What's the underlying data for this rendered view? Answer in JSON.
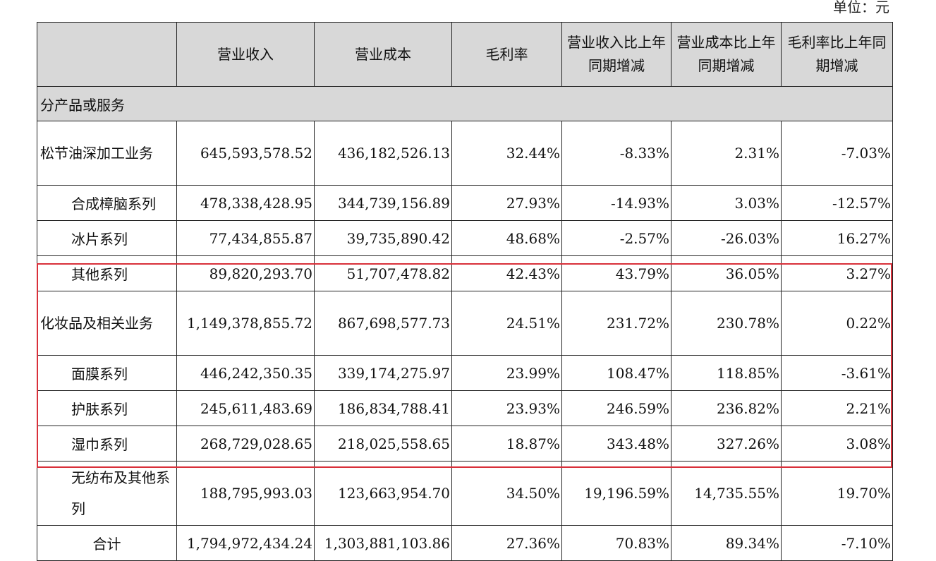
{
  "unit_label": "单位：元",
  "table": {
    "headers": [
      "",
      "营业收入",
      "营业成本",
      "毛利率",
      "营业收入比上年同期增减",
      "营业成本比上年同期增减",
      "毛利率比上年同期增减"
    ],
    "section_label": "分产品或服务",
    "rows": [
      {
        "name": "松节油深加工业务",
        "indent": false,
        "cells": [
          "645,593,578.52",
          "436,182,526.13",
          "32.44%",
          "-8.33%",
          "2.31%",
          "-7.03%"
        ]
      },
      {
        "name": "合成樟脑系列",
        "indent": true,
        "cells": [
          "478,338,428.95",
          "344,739,156.89",
          "27.93%",
          "-14.93%",
          "3.03%",
          "-12.57%"
        ]
      },
      {
        "name": "冰片系列",
        "indent": true,
        "cells": [
          "77,434,855.87",
          "39,735,890.42",
          "48.68%",
          "-2.57%",
          "-26.03%",
          "16.27%"
        ]
      },
      {
        "name": "其他系列",
        "indent": true,
        "cells": [
          "89,820,293.70",
          "51,707,478.82",
          "42.43%",
          "43.79%",
          "36.05%",
          "3.27%"
        ]
      },
      {
        "name": "化妆品及相关业务",
        "indent": false,
        "cells": [
          "1,149,378,855.72",
          "867,698,577.73",
          "24.51%",
          "231.72%",
          "230.78%",
          "0.22%"
        ]
      },
      {
        "name": "面膜系列",
        "indent": true,
        "cells": [
          "446,242,350.35",
          "339,174,275.97",
          "23.99%",
          "108.47%",
          "118.85%",
          "-3.61%"
        ]
      },
      {
        "name": "护肤系列",
        "indent": true,
        "cells": [
          "245,611,483.69",
          "186,834,788.41",
          "23.93%",
          "246.59%",
          "236.82%",
          "2.21%"
        ]
      },
      {
        "name": "湿巾系列",
        "indent": true,
        "cells": [
          "268,729,028.65",
          "218,025,558.65",
          "18.87%",
          "343.48%",
          "327.26%",
          "3.08%"
        ]
      },
      {
        "name": "无纺布及其他系列",
        "indent": true,
        "cells": [
          "188,795,993.03",
          "123,663,954.70",
          "34.50%",
          "19,196.59%",
          "14,735.55%",
          "19.70%"
        ]
      }
    ],
    "total": {
      "name": "合计",
      "cells": [
        "1,794,972,434.24",
        "1,303,881,103.86",
        "27.36%",
        "70.83%",
        "89.34%",
        "-7.10%"
      ]
    }
  }
}
